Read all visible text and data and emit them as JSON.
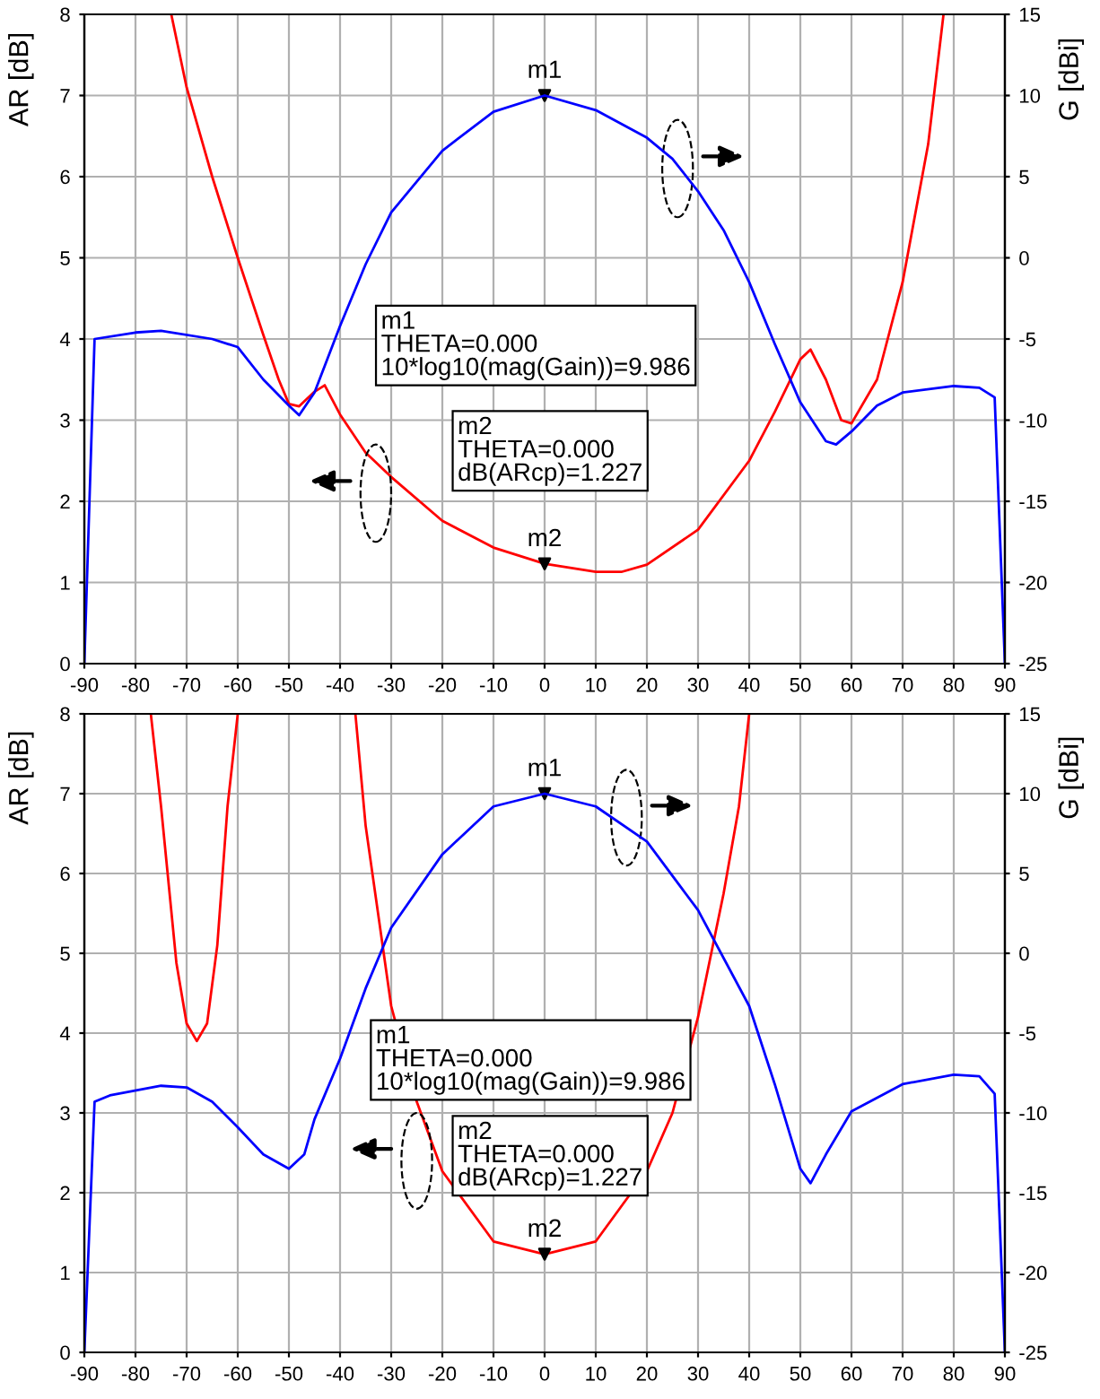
{
  "chart_data": [
    {
      "type": "line",
      "ylabel": "AR [dB]",
      "y2label": "G [dBi]",
      "xlim": [
        -90,
        90
      ],
      "xticks": [
        -90,
        -80,
        -70,
        -60,
        -50,
        -40,
        -30,
        -20,
        -10,
        0,
        10,
        20,
        30,
        40,
        50,
        60,
        70,
        80,
        90
      ],
      "ylim": [
        0,
        8
      ],
      "yticks": [
        0,
        1,
        2,
        3,
        4,
        5,
        6,
        7,
        8
      ],
      "y2lim": [
        -25,
        15
      ],
      "y2ticks": [
        -25,
        -20,
        -15,
        -10,
        -5,
        0,
        5,
        10,
        15
      ],
      "grid": true,
      "marker": "none",
      "line_style": "solid",
      "series": [
        {
          "color": "#ff0000",
          "x": [
            -73,
            -70,
            -65,
            -60,
            -55,
            -52,
            -50,
            -48,
            -45,
            -43,
            -40,
            -35,
            -30,
            -20,
            -10,
            0,
            10,
            15,
            20,
            30,
            40,
            45,
            50,
            52,
            55,
            58,
            60,
            65,
            70,
            75,
            78
          ],
          "values": [
            8,
            7.1,
            6.0,
            5.0,
            4.05,
            3.5,
            3.2,
            3.17,
            3.35,
            3.43,
            3.07,
            2.6,
            2.3,
            1.76,
            1.43,
            1.23,
            1.13,
            1.13,
            1.22,
            1.65,
            2.5,
            3.1,
            3.75,
            3.87,
            3.5,
            3.0,
            2.96,
            3.5,
            4.7,
            6.4,
            8
          ]
        },
        {
          "color": "#0000ff",
          "axis": "y2",
          "x": [
            -90,
            -88,
            -80,
            -75,
            -65,
            -60,
            -55,
            -50,
            -48,
            -45,
            -40,
            -35,
            -30,
            -20,
            -10,
            0,
            10,
            20,
            25,
            30,
            35,
            40,
            45,
            50,
            55,
            57,
            60,
            65,
            70,
            80,
            85,
            88,
            90
          ],
          "values": [
            -25,
            -5.0,
            -4.6,
            -4.5,
            -5.0,
            -5.5,
            -7.5,
            -9.1,
            -9.7,
            -8.3,
            -4.2,
            -0.4,
            2.8,
            6.6,
            9.0,
            10.0,
            9.1,
            7.4,
            6.1,
            4.1,
            1.7,
            -1.5,
            -5.3,
            -8.9,
            -11.3,
            -11.5,
            -10.7,
            -9.1,
            -8.3,
            -7.9,
            -8.0,
            -8.6,
            -25
          ]
        }
      ],
      "annotations": [
        "m1",
        {
          "text": "m2",
          "x": 0,
          "y": 1.23
        },
        "m1\nTHETA=0.000\n10*log10(mag(Gain))=9.986",
        "m2\nTHETA=0.000\ndB(ARcp)=1.227"
      ]
    },
    {
      "type": "line",
      "ylabel": "AR [dB]",
      "y2label": "G [dBi]",
      "xlim": [
        -90,
        90
      ],
      "xticks": [
        -90,
        -80,
        -70,
        -60,
        -50,
        -40,
        -30,
        -20,
        -10,
        0,
        10,
        20,
        30,
        40,
        50,
        60,
        70,
        80,
        90
      ],
      "ylim": [
        0,
        8
      ],
      "yticks": [
        0,
        1,
        2,
        3,
        4,
        5,
        6,
        7,
        8
      ],
      "y2lim": [
        -25,
        15
      ],
      "y2ticks": [
        -25,
        -20,
        -15,
        -10,
        -5,
        0,
        5,
        10,
        15
      ],
      "grid": true,
      "marker": "none",
      "line_style": "solid",
      "series": [
        {
          "color": "#ff0000",
          "x": [
            -77,
            -75,
            -72,
            -70,
            -68,
            -66,
            -64,
            -62,
            -60,
            -50,
            -37,
            -35,
            -30,
            -25,
            -20,
            -10,
            0,
            10,
            20,
            25,
            30,
            35,
            38,
            40
          ],
          "values": [
            8,
            6.84,
            4.88,
            4.12,
            3.9,
            4.12,
            5.1,
            6.84,
            8,
            null,
            8,
            6.6,
            4.34,
            3.14,
            2.27,
            1.39,
            1.23,
            1.39,
            2.27,
            3.0,
            4.2,
            5.75,
            6.84,
            8
          ]
        },
        {
          "color": "#0000ff",
          "axis": "y2",
          "x": [
            -90,
            -88,
            -85,
            -75,
            -70,
            -65,
            -60,
            -55,
            -50,
            -47,
            -45,
            -40,
            -35,
            -30,
            -20,
            -10,
            0,
            10,
            20,
            30,
            40,
            45,
            50,
            52,
            55,
            60,
            70,
            80,
            85,
            88,
            90
          ],
          "values": [
            -25,
            -9.3,
            -8.9,
            -8.3,
            -8.4,
            -9.3,
            -10.9,
            -12.6,
            -13.5,
            -12.6,
            -10.4,
            -6.6,
            -2.2,
            1.6,
            6.2,
            9.2,
            10.0,
            9.2,
            7.0,
            2.7,
            -3.3,
            -8.2,
            -13.5,
            -14.4,
            -12.6,
            -9.9,
            -8.2,
            -7.6,
            -7.7,
            -8.8,
            -25
          ]
        }
      ],
      "annotations": [
        "m1",
        {
          "text": "m2",
          "x": 0,
          "y": 1.23
        },
        "m1\nTHETA=0.000\n10*log10(mag(Gain))=9.986",
        "m2\nTHETA=0.000\ndB(ARcp)=1.227"
      ]
    }
  ]
}
